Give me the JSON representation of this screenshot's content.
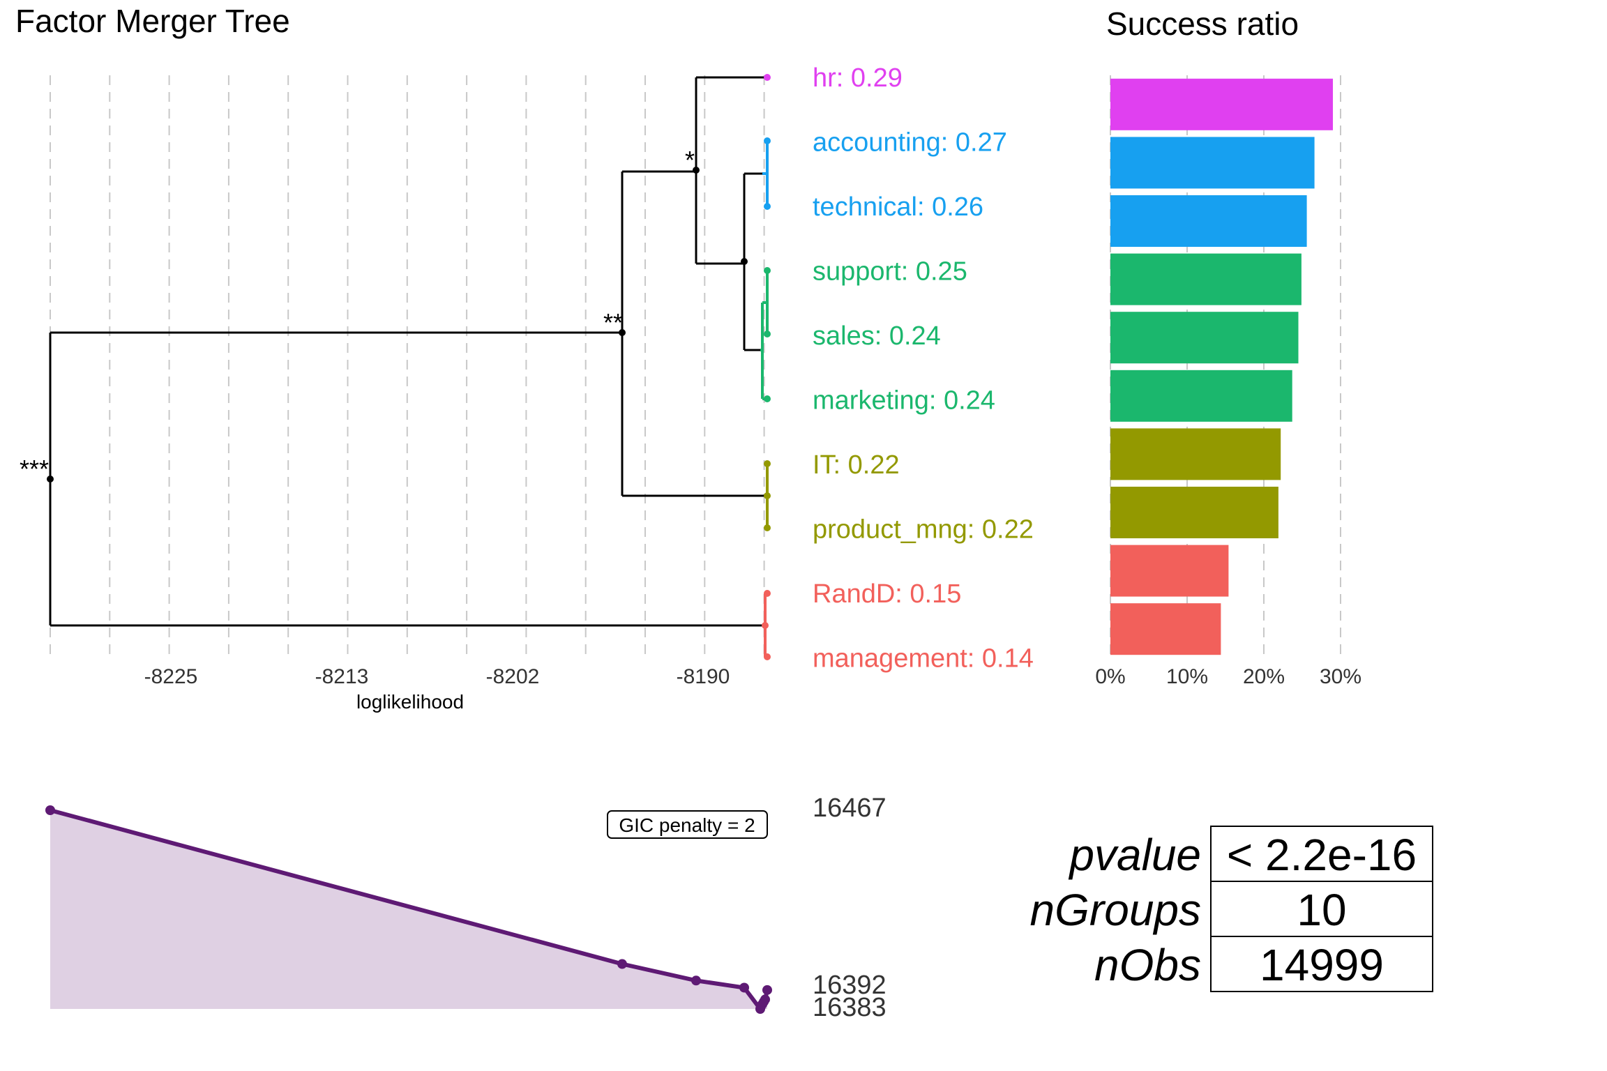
{
  "tree": {
    "title": "Factor Merger Tree",
    "xlabel": "loglikelihood",
    "x_ticks": [
      "-8225",
      "-8213",
      "-8202",
      "-8190"
    ],
    "groups": [
      {
        "label": "hr: 0.29",
        "color": "#E040F0"
      },
      {
        "label": "accounting: 0.27",
        "color": "#17A0F0"
      },
      {
        "label": "technical: 0.26",
        "color": "#17A0F0"
      },
      {
        "label": "support: 0.25",
        "color": "#1BB76D"
      },
      {
        "label": "sales: 0.24",
        "color": "#1BB76D"
      },
      {
        "label": "marketing: 0.24",
        "color": "#1BB76D"
      },
      {
        "label": "IT: 0.22",
        "color": "#939900"
      },
      {
        "label": "product_mng: 0.22",
        "color": "#939900"
      },
      {
        "label": "RandD: 0.15",
        "color": "#F2605B"
      },
      {
        "label": "management: 0.14",
        "color": "#F2605B"
      }
    ],
    "significance": {
      "root": "***",
      "level2": "**",
      "level3": "*"
    }
  },
  "chart_data": [
    {
      "type": "bar",
      "title": "Success ratio",
      "categories": [
        "hr",
        "accounting",
        "technical",
        "support",
        "sales",
        "marketing",
        "IT",
        "product_mng",
        "RandD",
        "management"
      ],
      "values": [
        29.0,
        26.6,
        25.6,
        24.9,
        24.5,
        23.7,
        22.2,
        21.9,
        15.4,
        14.4
      ],
      "colors": [
        "#E040F0",
        "#17A0F0",
        "#17A0F0",
        "#1BB76D",
        "#1BB76D",
        "#1BB76D",
        "#939900",
        "#939900",
        "#F2605B",
        "#F2605B"
      ],
      "x_tick_labels": [
        "0%",
        "10%",
        "20%",
        "30%"
      ],
      "xlim": [
        0,
        30
      ],
      "orientation": "horizontal"
    },
    {
      "type": "area",
      "title": "",
      "series_color": "#5E1A74",
      "fill_color": "#DFD0E3",
      "annotation": "GIC penalty = 2",
      "y_labels": [
        "16467",
        "16392",
        "16383"
      ],
      "ylim": [
        16383,
        16467
      ]
    }
  ],
  "stats_table": {
    "rows": [
      {
        "label": "pvalue",
        "value": "< 2.2e-16"
      },
      {
        "label": "nGroups",
        "value": "10"
      },
      {
        "label": "nObs",
        "value": "14999"
      }
    ]
  }
}
